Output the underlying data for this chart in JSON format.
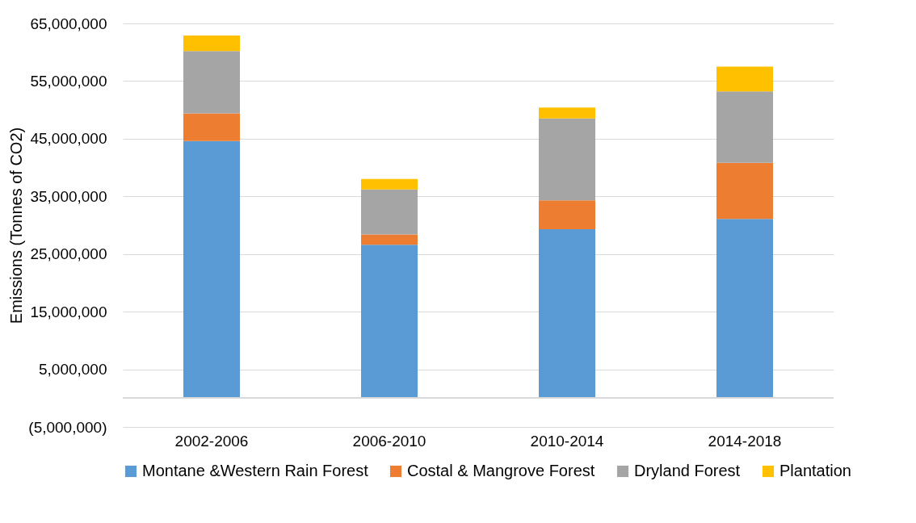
{
  "chart_data": {
    "type": "bar",
    "stacked": true,
    "ylabel": "Emissions (Tonnes of CO2)",
    "categories": [
      "2002-2006",
      "2006-2010",
      "2010-2014",
      "2014-2018"
    ],
    "series": [
      {
        "name": "Montane &Western Rain Forest",
        "color": "#5b9bd5",
        "values": [
          44600000,
          26600000,
          29300000,
          31100000
        ]
      },
      {
        "name": "Costal & Mangrove Forest",
        "color": "#ed7d31",
        "values": [
          4800000,
          1800000,
          5000000,
          9700000
        ]
      },
      {
        "name": "Dryland Forest",
        "color": "#a5a5a5",
        "values": [
          10800000,
          7800000,
          14200000,
          12400000
        ]
      },
      {
        "name": "Plantation",
        "color": "#ffc000",
        "values": [
          2700000,
          1800000,
          1900000,
          4300000
        ]
      }
    ],
    "ylim": [
      -5000000,
      65000000
    ],
    "yticks": [
      {
        "value": -5000000,
        "label": "(5,000,000)"
      },
      {
        "value": 5000000,
        "label": "5,000,000"
      },
      {
        "value": 15000000,
        "label": "15,000,000"
      },
      {
        "value": 25000000,
        "label": "25,000,000"
      },
      {
        "value": 35000000,
        "label": "35,000,000"
      },
      {
        "value": 45000000,
        "label": "45,000,000"
      },
      {
        "value": 55000000,
        "label": "55,000,000"
      },
      {
        "value": 65000000,
        "label": "65,000,000"
      }
    ],
    "grid": "y",
    "legend": "bottom"
  }
}
